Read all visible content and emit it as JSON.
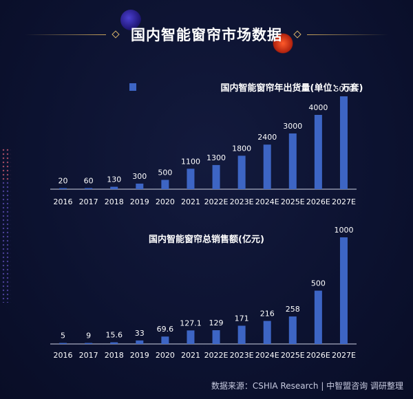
{
  "page": {
    "title": "国内智能窗帘市场数据",
    "footer": "数据来源：CSHIA Research | 中智盟咨询 调研整理"
  },
  "colors": {
    "bar": "#3d65c4",
    "accent": "#c9a45a",
    "background": "#0c1230"
  },
  "chart_data": [
    {
      "type": "bar",
      "title": "国内智能窗帘年出货量(单位：万套)",
      "legend": "top-right",
      "categories": [
        "2016",
        "2017",
        "2018",
        "2019",
        "2020",
        "2021",
        "2022E",
        "2023E",
        "2024E",
        "2025E",
        "2026E",
        "2027E"
      ],
      "values": [
        20,
        60,
        130,
        300,
        500,
        1100,
        1300,
        1800,
        2400,
        3000,
        4000,
        5000
      ],
      "labels": [
        "20",
        "60",
        "130",
        "300",
        "500",
        "1100",
        "1300",
        "1800",
        "2400",
        "3000",
        "4000",
        "5000"
      ],
      "ylim": [
        0,
        5000
      ]
    },
    {
      "type": "bar",
      "title": "国内智能窗帘总销售额(亿元)",
      "categories": [
        "2016",
        "2017",
        "2018",
        "2019",
        "2020",
        "2021",
        "2022E",
        "2023E",
        "2024E",
        "2025E",
        "2026E",
        "2027E"
      ],
      "values": [
        5,
        9,
        15.6,
        33,
        69.6,
        127.1,
        129,
        171,
        216,
        258,
        500,
        1000
      ],
      "labels": [
        "5",
        "9",
        "15.6",
        "33",
        "69.6",
        "127.1",
        "129",
        "171",
        "216",
        "258",
        "500",
        "1000"
      ],
      "ylim": [
        0,
        1000
      ]
    }
  ]
}
